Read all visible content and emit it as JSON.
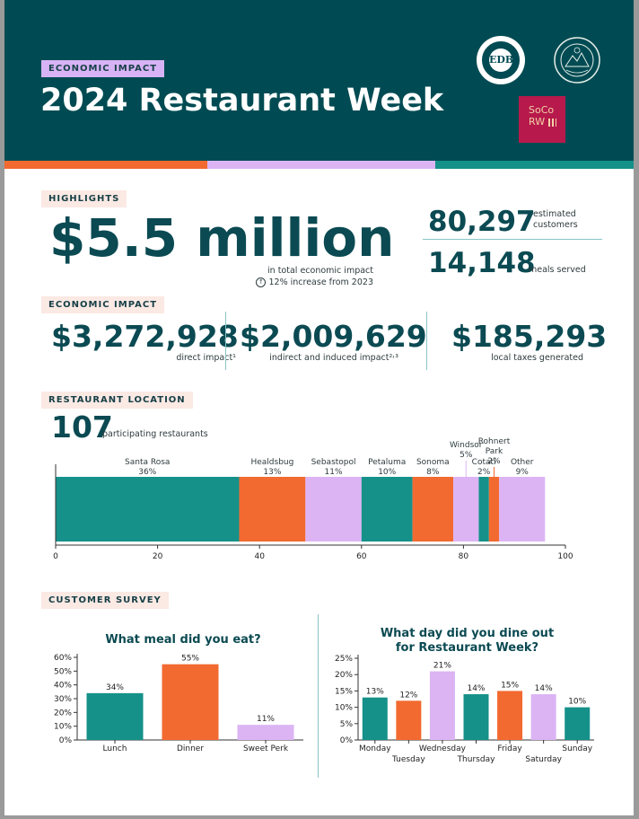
{
  "header": {
    "tag": "ECONOMIC IMPACT",
    "title": "2024 Restaurant Week",
    "logo1_text": "EDB",
    "logo3_line1": "SoCo",
    "logo3_line2": "RW"
  },
  "highlights": {
    "tag": "HIGHLIGHTS",
    "total_value": "$5.5 million",
    "total_caption": "in total economic impact",
    "increase_text": "12% increase from 2023",
    "customers_value": "80,297",
    "customers_label_1": "estimated",
    "customers_label_2": "customers",
    "meals_value": "14,148",
    "meals_label": "meals served"
  },
  "economic_impact": {
    "tag": "ECONOMIC IMPACT",
    "direct_value": "$3,272,928",
    "direct_label": "direct impact¹",
    "indirect_value": "$2,009,629",
    "indirect_label": "indirect and induced impact²˒³",
    "taxes_value": "$185,293",
    "taxes_label": "local taxes generated"
  },
  "restaurant_location": {
    "tag": "RESTAURANT LOCATION",
    "count_value": "107",
    "count_label": "participating restaurants"
  },
  "customer_survey": {
    "tag": "CUSTOMER SURVEY"
  },
  "colors": {
    "teal": "#15918a",
    "orange": "#f26a30",
    "lavender": "#dcb4f4",
    "dark_teal": "#004b53"
  },
  "chart_data": [
    {
      "type": "bar",
      "orientation": "horizontal-stacked",
      "categories": [
        "Santa Rosa",
        "Healdsbug",
        "Sebastopol",
        "Petaluma",
        "Sonoma",
        "Windsor",
        "Cotati",
        "Rohnert Park",
        "Other"
      ],
      "series": [
        {
          "values": [
            36,
            13,
            11,
            10,
            8,
            5,
            2,
            2,
            9
          ]
        }
      ],
      "data_labels": [
        "36%",
        "13%",
        "11%",
        "10%",
        "8%",
        "5%",
        "2%",
        "2%",
        "9%"
      ],
      "colors": [
        "#15918a",
        "#f26a30",
        "#dcb4f4",
        "#15918a",
        "#f26a30",
        "#dcb4f4",
        "#15918a",
        "#f26a30",
        "#dcb4f4"
      ],
      "xlim": [
        0,
        100
      ],
      "xticks": [
        0,
        20,
        40,
        60,
        80,
        100
      ],
      "title": "",
      "xlabel": "",
      "ylabel": ""
    },
    {
      "type": "bar",
      "title": "What meal did you eat?",
      "categories": [
        "Lunch",
        "Dinner",
        "Sweet Perk"
      ],
      "values": [
        34,
        55,
        11
      ],
      "data_labels": [
        "34%",
        "55%",
        "11%"
      ],
      "colors": [
        "#15918a",
        "#f26a30",
        "#dcb4f4"
      ],
      "ylim": [
        0,
        60
      ],
      "yticks": [
        "0%",
        "10%",
        "20%",
        "30%",
        "40%",
        "50%",
        "60%"
      ],
      "xlabel": "",
      "ylabel": ""
    },
    {
      "type": "bar",
      "title_line1": "What day did you dine out",
      "title_line2": "for Restaurant Week?",
      "categories": [
        "Monday",
        "Tuesday",
        "Wednesday",
        "Thursday",
        "Friday",
        "Saturday",
        "Sunday"
      ],
      "values": [
        13,
        12,
        21,
        14,
        15,
        14,
        10
      ],
      "data_labels": [
        "13%",
        "12%",
        "21%",
        "14%",
        "15%",
        "14%",
        "10%"
      ],
      "colors": [
        "#15918a",
        "#f26a30",
        "#dcb4f4",
        "#15918a",
        "#f26a30",
        "#dcb4f4",
        "#15918a"
      ],
      "ylim": [
        0,
        25
      ],
      "yticks": [
        "0%",
        "5%",
        "10%",
        "15%",
        "20%",
        "25%"
      ],
      "xlabel": "",
      "ylabel": ""
    }
  ]
}
